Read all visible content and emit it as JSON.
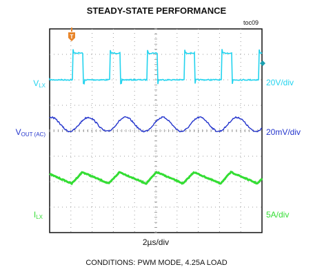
{
  "chart_data": {
    "type": "line",
    "title": "STEADY-STATE PERFORMANCE",
    "figure_id": "toc09",
    "xlabel": "2µs/div",
    "conditions": "CONDITIONS: PWM MODE, 4.25A LOAD",
    "grid": true,
    "grid_divisions": [
      10,
      8
    ],
    "x_unit": "µs",
    "x_per_div": 2,
    "trigger_marker": "T",
    "trigger_time_us": 0,
    "switching_period_us": 3.5,
    "series": [
      {
        "name_main": "V",
        "name_sub": "LX",
        "scale": "20V/div",
        "color": "#22d3ee",
        "shape": "pulse",
        "level_low_div": 0,
        "level_high_div": 1.05,
        "on_time_us": 1.0,
        "first_rise_us": 0.1
      },
      {
        "name_main": "V",
        "name_sub": "OUT (AC)",
        "scale": "20mV/div",
        "color": "#2233cc",
        "shape": "ripple",
        "peak_to_peak_div": 0.55
      },
      {
        "name_main": "I",
        "name_sub": "LX",
        "scale": "5A/div",
        "color": "#33dd33",
        "shape": "sawtooth",
        "peak_to_peak_div": 0.45
      }
    ]
  }
}
